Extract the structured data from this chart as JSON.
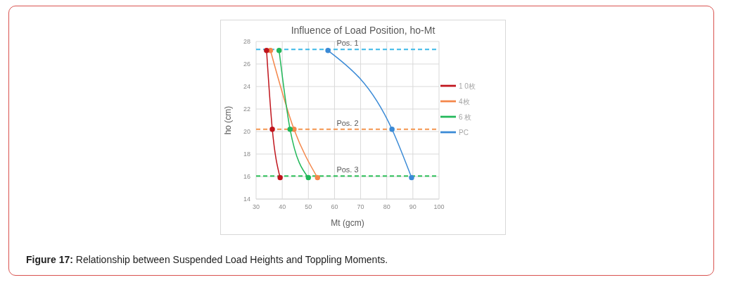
{
  "chart_data": {
    "type": "line",
    "title": "Influence of Load Position, ho-Mt",
    "xlabel": "Mt (gcm)",
    "ylabel": "ho (cm)",
    "xlim": [
      30,
      100
    ],
    "xticks": [
      30,
      40,
      50,
      60,
      70,
      80,
      90,
      100
    ],
    "ylim": [
      14,
      28
    ],
    "yticks": [
      14,
      16,
      18,
      20,
      22,
      24,
      26,
      28
    ],
    "grid": true,
    "legend": "right",
    "marker": "circle",
    "line_style": "solid",
    "series": [
      {
        "name": "PC",
        "color": "#3a8ad6",
        "x": [
          57.5,
          82,
          89.5
        ],
        "values": [
          27.2,
          20.2,
          15.9
        ]
      },
      {
        "name": "4枚",
        "color": "#f4874b",
        "x": [
          35.5,
          44.5,
          53.5
        ],
        "values": [
          27.2,
          20.2,
          15.9
        ]
      },
      {
        "name": "6 枚",
        "color": "#22b85a",
        "x": [
          38.8,
          43,
          50
        ],
        "values": [
          27.2,
          20.2,
          15.9
        ]
      },
      {
        "name": "1 0枚",
        "color": "#c0141c",
        "x": [
          34,
          36.2,
          39.2
        ],
        "values": [
          27.2,
          20.2,
          15.9
        ]
      }
    ],
    "ref_lines": [
      {
        "axis": "y",
        "value": 27.3,
        "label": "Pos. 1",
        "color": "#3bb8e8",
        "line_style": "dashed"
      },
      {
        "axis": "y",
        "value": 20.2,
        "label": "Pos. 2",
        "color": "#f4954e",
        "line_style": "dashed"
      },
      {
        "axis": "y",
        "value": 16.05,
        "label": "Pos. 3",
        "color": "#2ec05a",
        "line_style": "dashed"
      }
    ],
    "annotations": [
      "Figure 17: Relationship between Suspended Load Heights and Toppling Moments."
    ]
  }
}
